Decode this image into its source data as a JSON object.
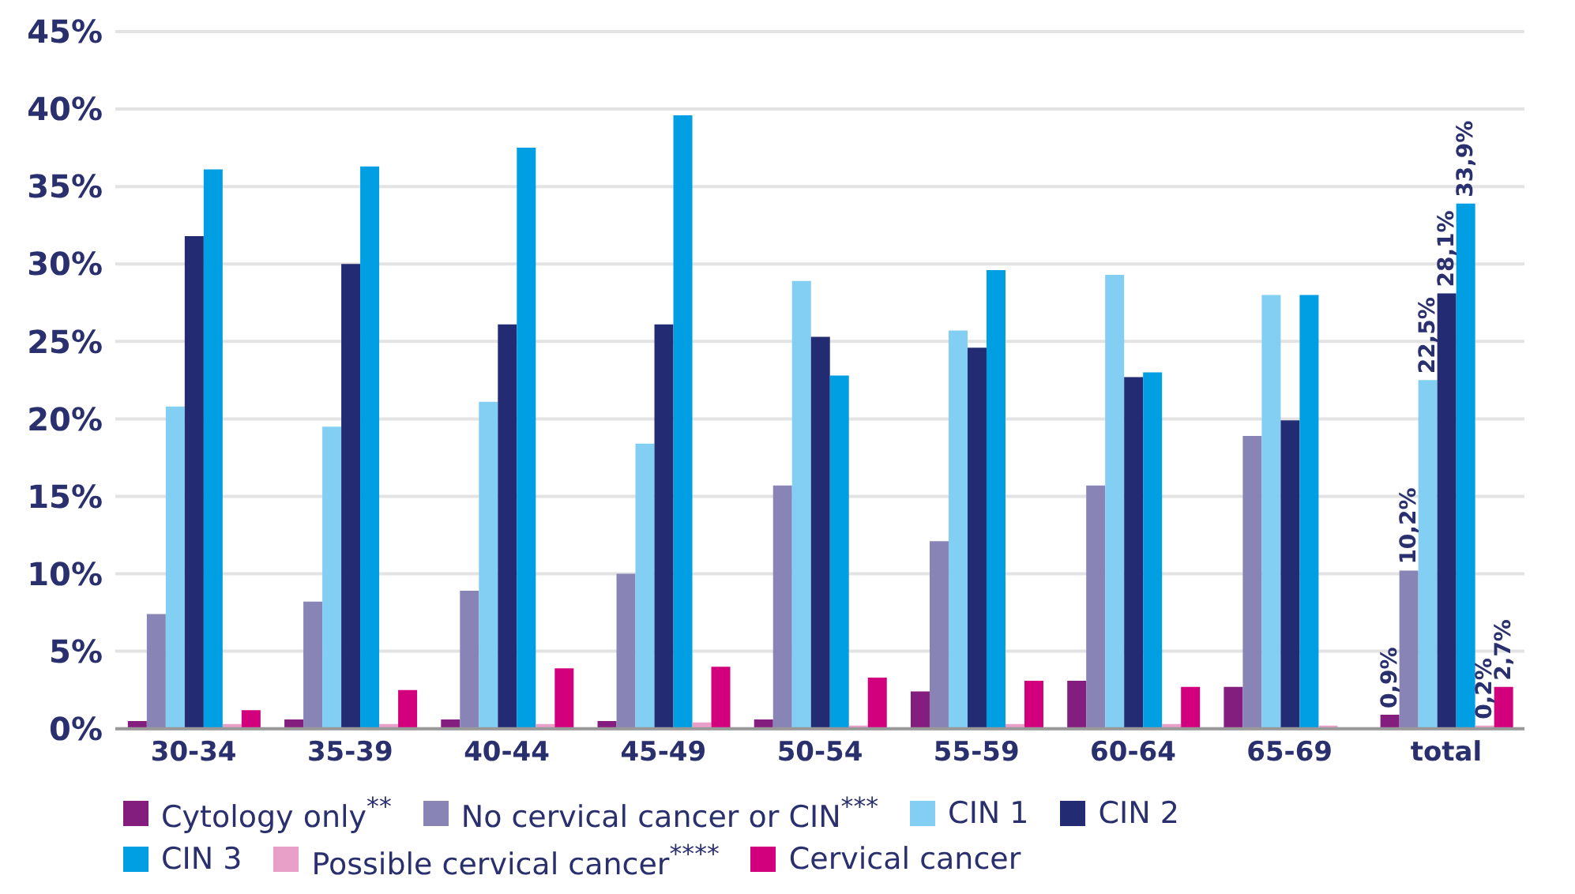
{
  "chart_data": {
    "type": "bar",
    "categories": [
      "30-34",
      "35-39",
      "40-44",
      "45-49",
      "50-54",
      "55-59",
      "60-64",
      "65-69",
      "total"
    ],
    "series": [
      {
        "name": "Cytology only$^{**}$",
        "color": "#841e7e",
        "values": [
          0.5,
          0.6,
          0.6,
          0.5,
          0.6,
          2.4,
          3.1,
          2.7,
          0.9
        ],
        "value_labels": [
          null,
          null,
          null,
          null,
          null,
          null,
          null,
          null,
          "0,9%"
        ]
      },
      {
        "name": "No cervical cancer or CIN$^{***}$",
        "color": "#8884b6",
        "values": [
          7.4,
          8.2,
          8.9,
          10.0,
          15.7,
          12.1,
          15.7,
          18.9,
          10.2
        ],
        "value_labels": [
          null,
          null,
          null,
          null,
          null,
          null,
          null,
          null,
          "10,2%"
        ]
      },
      {
        "name": "CIN 1",
        "color": "#83cff3",
        "values": [
          20.8,
          19.5,
          21.1,
          18.4,
          28.9,
          25.7,
          29.3,
          28.0,
          22.5
        ],
        "value_labels": [
          null,
          null,
          null,
          null,
          null,
          null,
          null,
          null,
          "22,5%"
        ]
      },
      {
        "name": "CIN 2",
        "color": "#232c73",
        "values": [
          31.8,
          30.0,
          26.1,
          26.1,
          25.3,
          24.6,
          22.7,
          19.9,
          28.1
        ],
        "value_labels": [
          null,
          null,
          null,
          null,
          null,
          null,
          null,
          null,
          "28,1%"
        ]
      },
      {
        "name": "CIN 3",
        "color": "#009fe3",
        "values": [
          36.1,
          36.3,
          37.5,
          39.6,
          22.8,
          29.6,
          23.0,
          28.0,
          33.9
        ],
        "value_labels": [
          null,
          null,
          null,
          null,
          null,
          null,
          null,
          null,
          "33,9%"
        ]
      },
      {
        "name": "Possible cervical cancer$^{****}$",
        "color": "#e8a0c8",
        "values": [
          0.3,
          0.3,
          0.3,
          0.4,
          0.2,
          0.3,
          0.3,
          0.2,
          0.2
        ],
        "value_labels": [
          null,
          null,
          null,
          null,
          null,
          null,
          null,
          null,
          "0,2%"
        ]
      },
      {
        "name": "Cervical cancer",
        "color": "#d3007d",
        "values": [
          1.2,
          2.5,
          3.9,
          4.0,
          3.3,
          3.1,
          2.7,
          0,
          2.7
        ],
        "value_labels": [
          null,
          null,
          null,
          null,
          null,
          null,
          null,
          null,
          "2,7%"
        ]
      }
    ],
    "ylim": [
      0,
      45
    ],
    "yticks": [
      {
        "value": 0,
        "label": "0%"
      },
      {
        "value": 5,
        "label": "5%"
      },
      {
        "value": 10,
        "label": "10%"
      },
      {
        "value": 15,
        "label": "15%"
      },
      {
        "value": 20,
        "label": "20%"
      },
      {
        "value": 25,
        "label": "25%"
      },
      {
        "value": 30,
        "label": "30%"
      },
      {
        "value": 35,
        "label": "35%"
      },
      {
        "value": 40,
        "label": "40%"
      },
      {
        "value": 45,
        "label": "45%"
      }
    ],
    "grid": "y",
    "legend": "bottom"
  }
}
